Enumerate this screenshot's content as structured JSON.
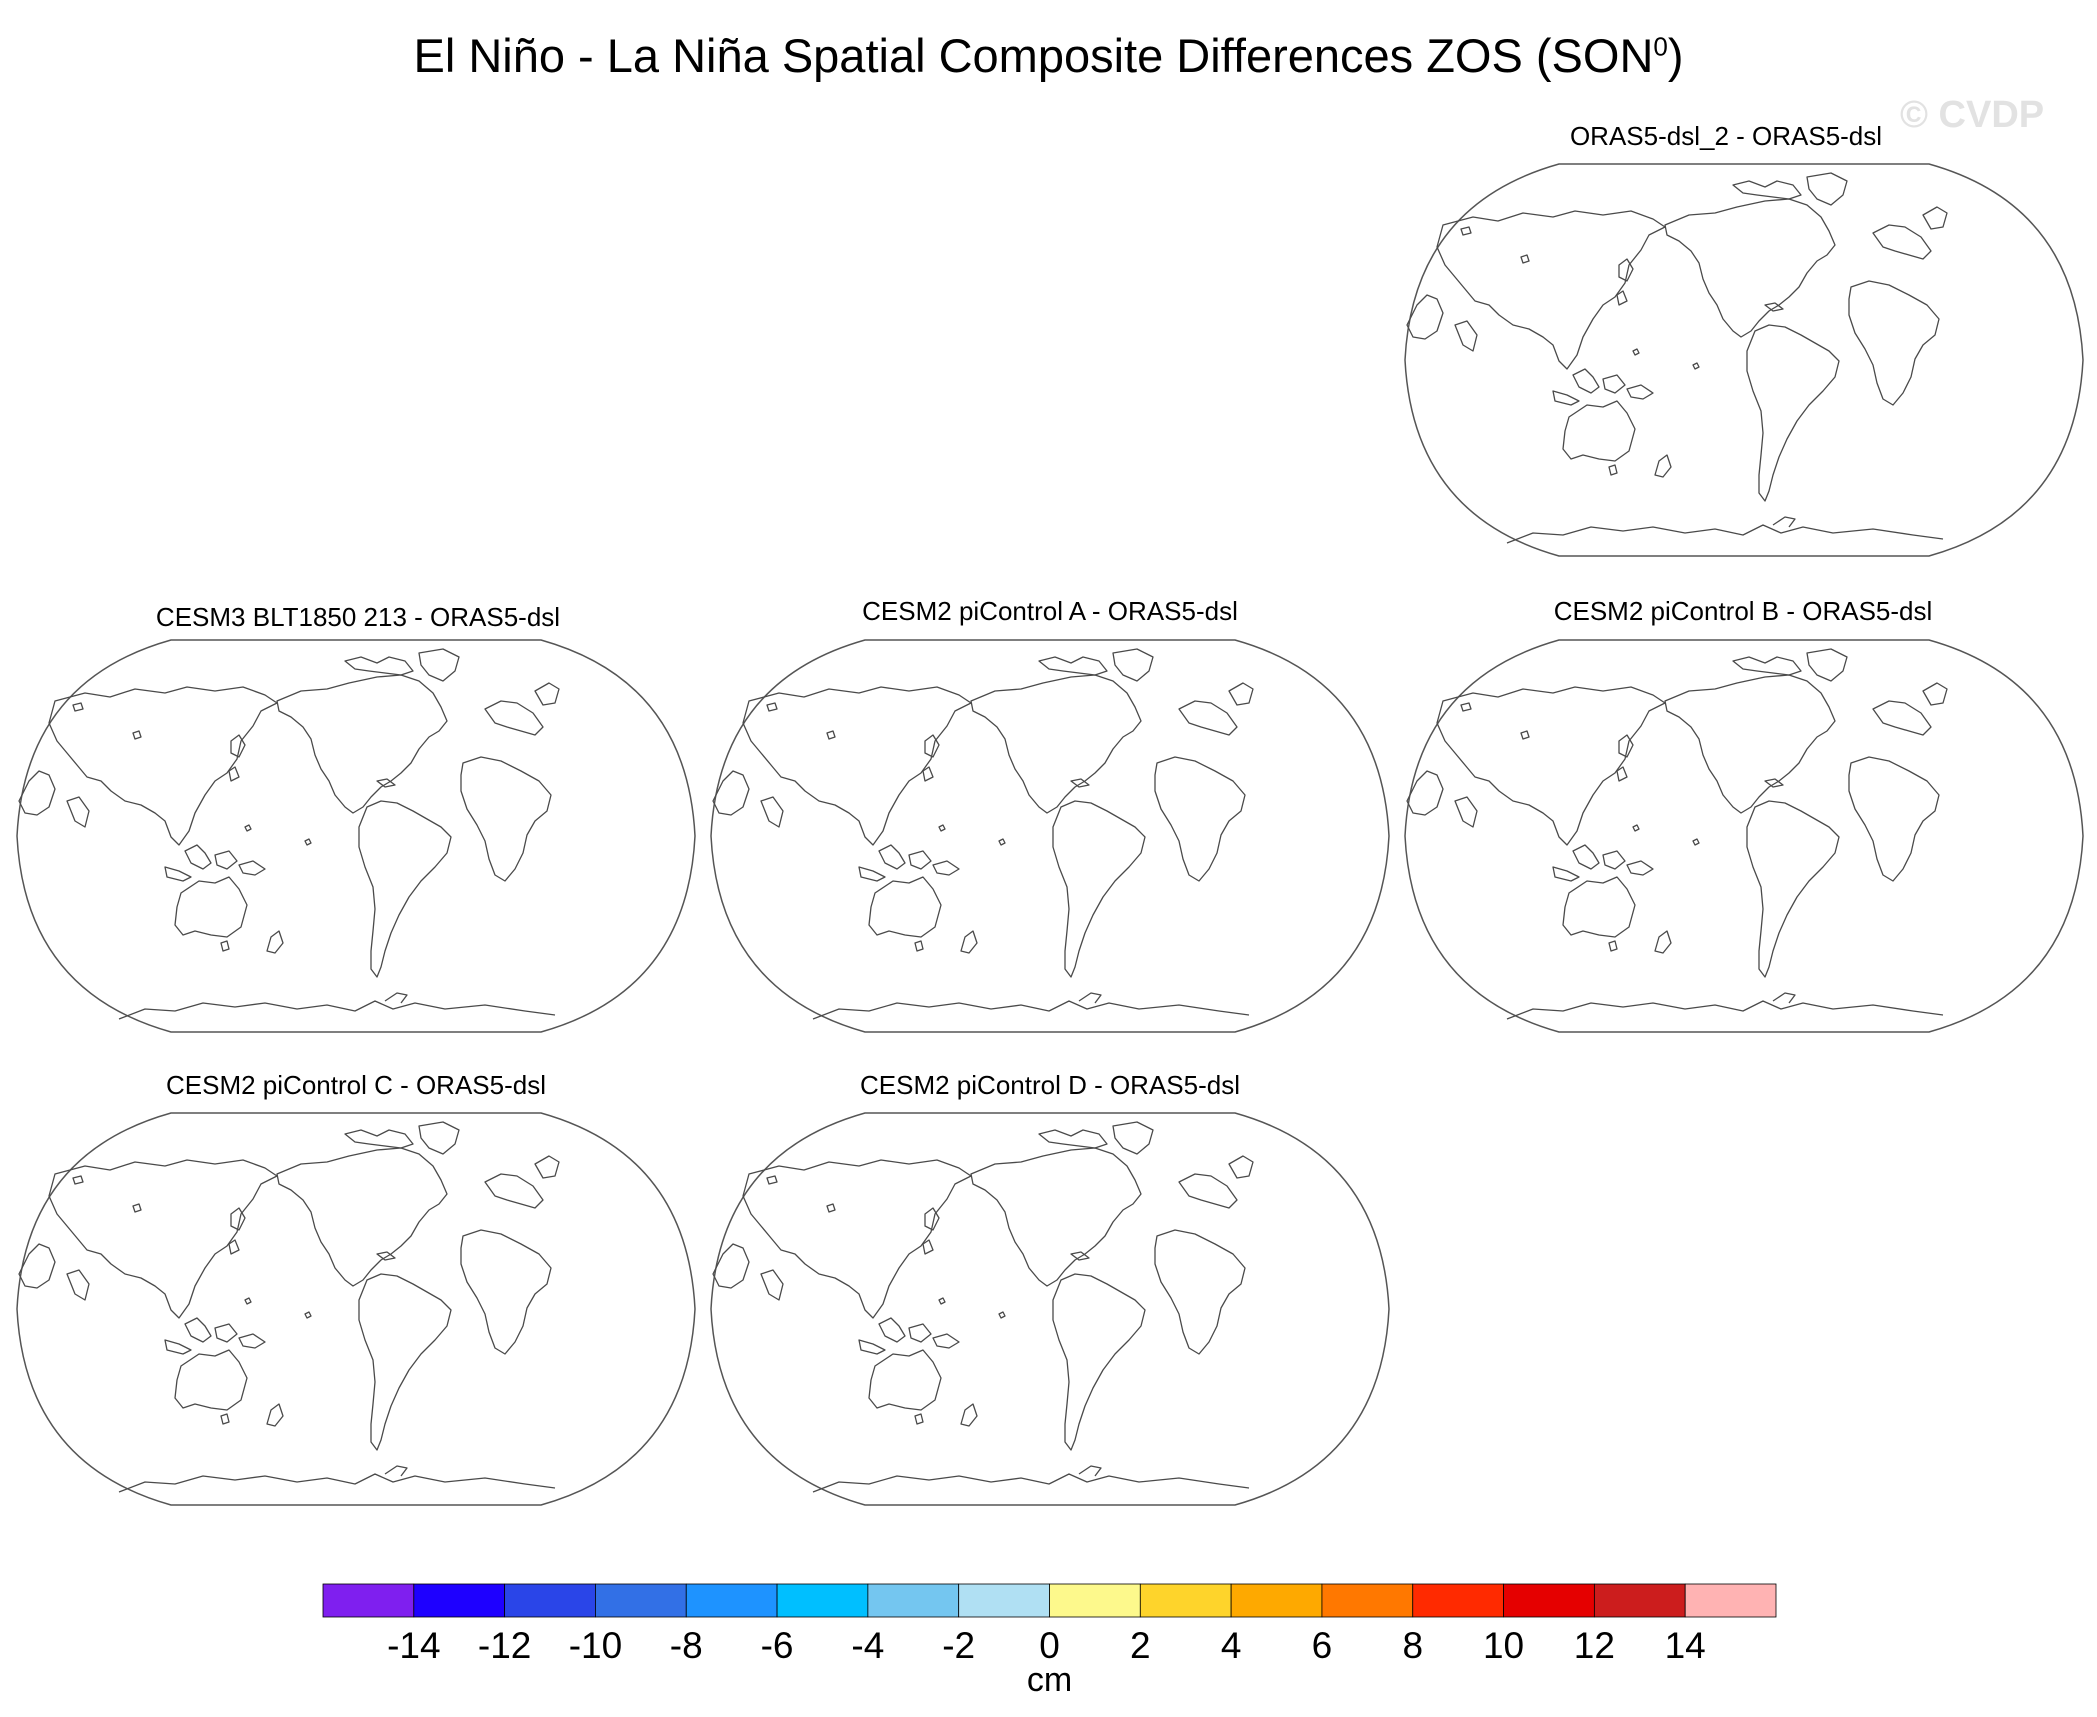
{
  "title": "El Niño - La Niña Spatial Composite Differences ZOS (SON",
  "title_superscript": "0",
  "title_close": ")",
  "watermark": "© CVDP",
  "panels": [
    {
      "title": "ORAS5-dsl_2 - ORAS5-dsl"
    },
    {
      "title": "CESM3 BLT1850 213 - ORAS5-dsl"
    },
    {
      "title": "CESM2 piControl A - ORAS5-dsl"
    },
    {
      "title": "CESM2 piControl B - ORAS5-dsl"
    },
    {
      "title": "CESM2 piControl C - ORAS5-dsl"
    },
    {
      "title": "CESM2 piControl D - ORAS5-dsl"
    }
  ],
  "colorbar": {
    "units": "cm",
    "colors": [
      "#7f1fef",
      "#1e00ff",
      "#2a45e8",
      "#3270e6",
      "#1e93ff",
      "#00bfff",
      "#74c6f0",
      "#b0e0f3",
      "#fdf98c",
      "#fed42b",
      "#fea900",
      "#ff7800",
      "#ff2a00",
      "#e50000",
      "#cc1d1d",
      "#ffb3b3"
    ],
    "tick_labels": [
      "-14",
      "-12",
      "-10",
      "-8",
      "-6",
      "-4",
      "-2",
      "0",
      "2",
      "4",
      "6",
      "8",
      "10",
      "12",
      "14"
    ]
  }
}
